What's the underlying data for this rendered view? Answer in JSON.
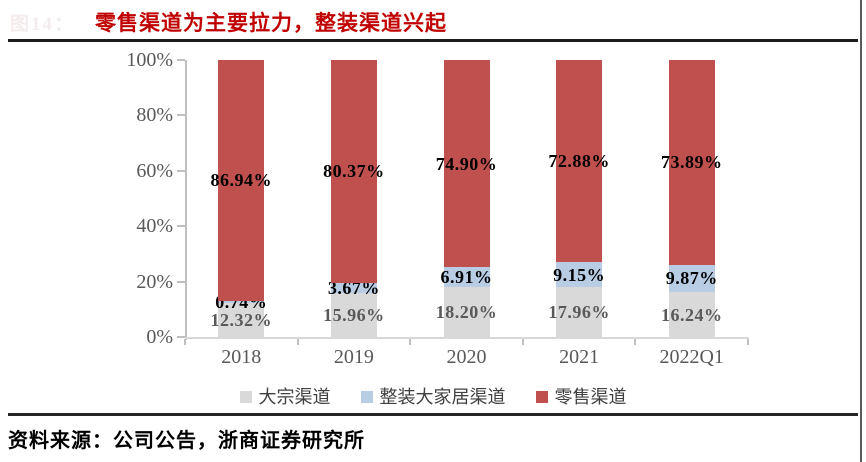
{
  "figure": {
    "number_faint": "图14：",
    "title": "零售渠道为主要拉力，整装渠道兴起",
    "source_label": "资料来源：公司公告，浙商证券研究所"
  },
  "colors": {
    "title_red": "#c00000",
    "bar_red": "#c0504d",
    "bar_blue": "#b8cce4",
    "bar_gray": "#d9d9d9",
    "axis_text": "#595959",
    "label_dark": "#000000",
    "label_gray": "#595959"
  },
  "chart_data": {
    "type": "bar",
    "stacked": true,
    "unit": "%",
    "title": "零售渠道为主要拉力，整装渠道兴起",
    "categories": [
      "2018",
      "2019",
      "2020",
      "2021",
      "2022Q1"
    ],
    "series": [
      {
        "name": "大宗渠道",
        "color_key": "bar_gray",
        "label_color_key": "label_gray",
        "values": [
          12.32,
          15.96,
          18.2,
          17.96,
          16.24
        ]
      },
      {
        "name": "整装大家居渠道",
        "color_key": "bar_blue",
        "label_color_key": "label_dark",
        "values": [
          0.74,
          3.67,
          6.91,
          9.15,
          9.87
        ]
      },
      {
        "name": "零售渠道",
        "color_key": "bar_red",
        "label_color_key": "label_dark",
        "values": [
          86.94,
          80.37,
          74.9,
          72.88,
          73.89
        ]
      }
    ],
    "y_ticks": [
      "0%",
      "20%",
      "40%",
      "60%",
      "80%",
      "100%"
    ],
    "ylim": [
      0,
      100
    ],
    "grid": false,
    "legend_position": "bottom"
  }
}
